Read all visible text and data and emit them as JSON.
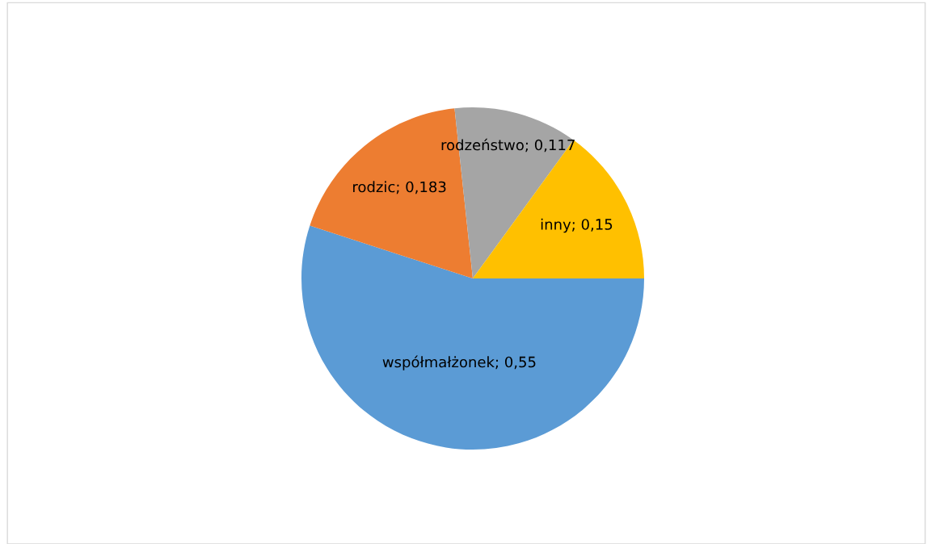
{
  "chart_data": {
    "type": "pie",
    "categories": [
      "współmałżonek",
      "rodzic",
      "rodzeństwo",
      "inny"
    ],
    "values": [
      0.55,
      0.183,
      0.117,
      0.15
    ],
    "colors": [
      "#5b9bd5",
      "#ed7d31",
      "#a5a5a5",
      "#ffc000"
    ],
    "value_labels": [
      "0,55",
      "0,183",
      "0,117",
      "0,15"
    ],
    "legend": false
  }
}
